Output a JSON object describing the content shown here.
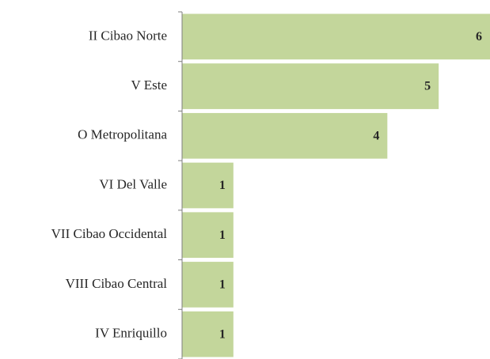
{
  "chart_data": {
    "type": "bar",
    "orientation": "horizontal",
    "categories": [
      "II Cibao Norte",
      "V Este",
      "O Metropolitana",
      "VI Del Valle",
      "VII Cibao Occidental",
      "VIII Cibao Central",
      "IV Enriquillo"
    ],
    "values": [
      6,
      5,
      4,
      1,
      1,
      1,
      1
    ],
    "color": "#c3d69b"
  }
}
